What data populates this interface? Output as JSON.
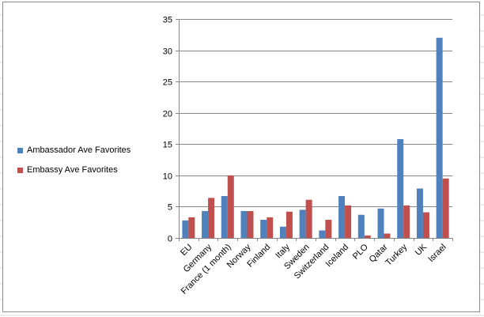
{
  "colors": {
    "ambassador": "#4f81bd",
    "embassy": "#c0504d",
    "gridline": "#868686",
    "axis": "#868686",
    "sheet_gridline": "#d9d9d9",
    "frame_border": "#8c8c8c"
  },
  "legend": {
    "placement": "left",
    "items": [
      {
        "label": "Ambassador Ave Favorites",
        "color": "#4f81bd"
      },
      {
        "label": "Embassy Ave Favorites",
        "color": "#c0504d"
      }
    ]
  },
  "chart_data": {
    "type": "bar",
    "title": "",
    "xlabel": "",
    "ylabel": "",
    "ylim": [
      0,
      35
    ],
    "yticks": [
      0,
      5,
      10,
      15,
      20,
      25,
      30,
      35
    ],
    "grid": true,
    "categories": [
      "EU",
      "Germany",
      "France (1 month)",
      "Norway",
      "Finland",
      "Italy",
      "Sweden",
      "Switzerland",
      "Iceland",
      "PLO",
      "Qatar",
      "Turkey",
      "UK",
      "Israel"
    ],
    "series": [
      {
        "name": "Ambassador Ave Favorites",
        "color": "#4f81bd",
        "values": [
          2.8,
          4.3,
          6.7,
          4.3,
          2.9,
          1.8,
          4.5,
          1.2,
          6.7,
          3.7,
          4.7,
          15.8,
          7.9,
          32.0
        ]
      },
      {
        "name": "Embassy Ave Favorites",
        "color": "#c0504d",
        "values": [
          3.3,
          6.4,
          10.0,
          4.3,
          3.3,
          4.2,
          6.1,
          2.9,
          5.2,
          0.4,
          0.7,
          5.2,
          4.1,
          9.5
        ]
      }
    ]
  }
}
